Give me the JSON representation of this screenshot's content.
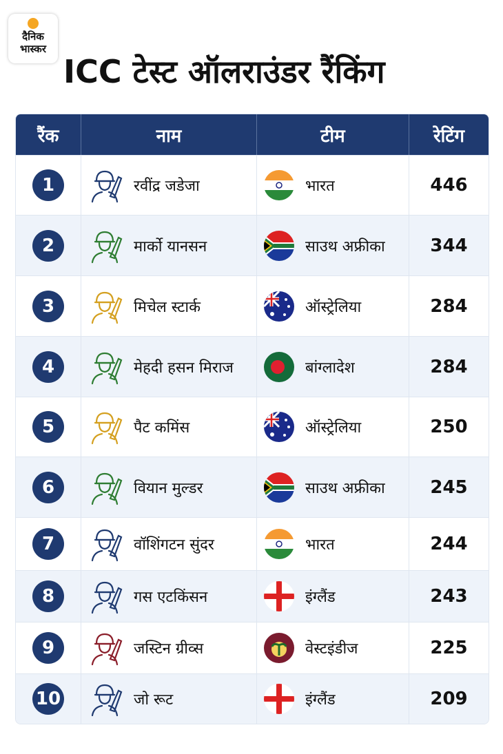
{
  "logo": {
    "line1": "दैनिक",
    "line2": "भास्कर"
  },
  "title": "ICC टेस्ट ऑलराउंडर रैंकिंग",
  "table": {
    "headers": [
      "रैंक",
      "नाम",
      "टीम",
      "रेटिंग"
    ],
    "rows": [
      [
        1,
        "रवींद्र जडेजा",
        "भारत",
        446
      ],
      [
        2,
        "मार्को यानसन",
        "साउथ अफ्रीका",
        344
      ],
      [
        3,
        "मिचेल स्टार्क",
        "ऑस्ट्रेलिया",
        284
      ],
      [
        4,
        "मेहदी हसन मिराज",
        "बांग्लादेश",
        284
      ],
      [
        5,
        "पैट कमिंस",
        "ऑस्ट्रेलिया",
        250
      ],
      [
        6,
        "वियान मुल्डर",
        "साउथ अफ्रीका",
        245
      ],
      [
        7,
        "वॉशिंगटन सुंदर",
        "भारत",
        244
      ],
      [
        8,
        "गस एटकिंसन",
        "इंग्लैंड",
        243
      ],
      [
        9,
        "जस्टिन ग्रीव्स",
        "वेस्टइंडीज",
        225
      ],
      [
        10,
        "जो रूट",
        "इंग्लैंड",
        209
      ]
    ]
  }
}
